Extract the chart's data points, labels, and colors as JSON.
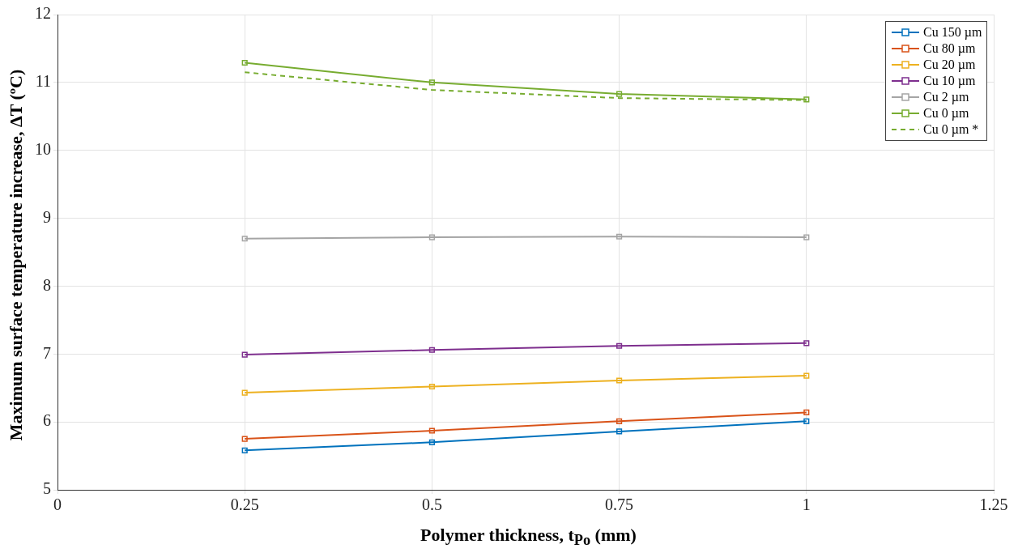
{
  "chart_data": {
    "type": "line",
    "xlabel": "Polymer thickness, t$_{Po}$ (mm)",
    "ylabel": "Maximum surface temperature increase, ΔT (ºC)",
    "x": [
      0.25,
      0.5,
      0.75,
      1
    ],
    "xlim": [
      0,
      1.25
    ],
    "xticks": [
      0,
      0.25,
      0.5,
      0.75,
      1,
      1.25
    ],
    "ylim": [
      5,
      12
    ],
    "yticks": [
      5,
      6,
      7,
      8,
      9,
      10,
      11,
      12
    ],
    "grid": true,
    "legend": "top right",
    "marker": "square",
    "line_style": "solid",
    "series": [
      {
        "name": "Cu 150 µm",
        "color": "#0072bd",
        "values": [
          5.58,
          5.7,
          5.86,
          6.01
        ]
      },
      {
        "name": "Cu 80 µm",
        "color": "#d95319",
        "values": [
          5.75,
          5.87,
          6.01,
          6.14
        ]
      },
      {
        "name": "Cu 20 µm",
        "color": "#edb120",
        "values": [
          6.43,
          6.52,
          6.61,
          6.68
        ]
      },
      {
        "name": "Cu 10 µm",
        "color": "#7e2f8e",
        "values": [
          6.99,
          7.06,
          7.12,
          7.16
        ]
      },
      {
        "name": "Cu 2 µm",
        "color": "#a5a5a5",
        "values": [
          8.7,
          8.72,
          8.73,
          8.72
        ]
      },
      {
        "name": "Cu 0 µm",
        "color": "#77ac30",
        "values": [
          11.29,
          11.0,
          10.83,
          10.75
        ]
      },
      {
        "name": "Cu 0 µm *",
        "color": "#77ac30",
        "values": [
          11.15,
          10.89,
          10.77,
          10.74
        ],
        "marker": "none",
        "line_style": "dashed"
      }
    ]
  }
}
